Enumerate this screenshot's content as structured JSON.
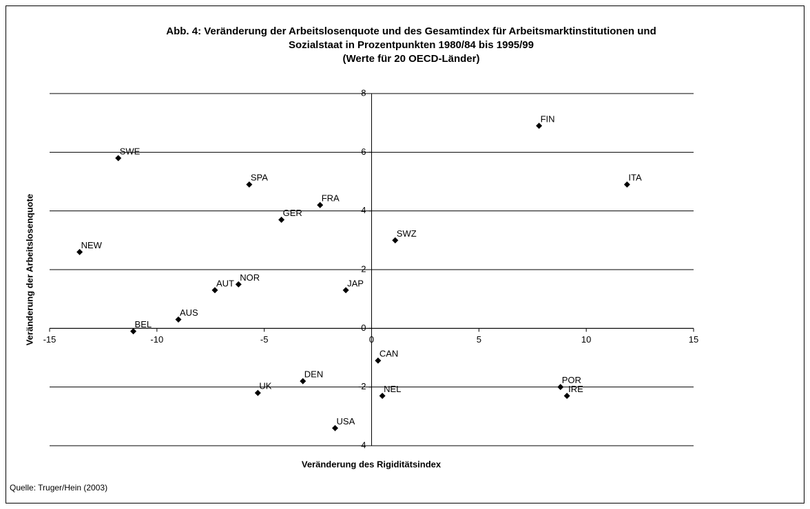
{
  "chart_data": {
    "type": "scatter",
    "title": [
      "Abb. 4: Veränderung der Arbeitslosenquote und des Gesamtindex für Arbeitsmarktinstitutionen und",
      "Sozialstaat in Prozentpunkten 1980/84 bis 1995/99",
      "(Werte für 20 OECD-Länder)"
    ],
    "x_label": "Veränderung des Rigiditätsindex",
    "y_label": "Veränderung der Arbeitslosenquote",
    "source": "Quelle: Truger/Hein (2003)",
    "labels": [
      "FIN",
      "SWE",
      "ITA",
      "SPA",
      "FRA",
      "GER",
      "SWZ",
      "NEW",
      "NOR",
      "AUT",
      "JAP",
      "AUS",
      "BEL",
      "CAN",
      "DEN",
      "UK",
      "NEL",
      "POR",
      "IRE",
      "USA"
    ],
    "x": [
      7.8,
      -11.8,
      11.9,
      -5.7,
      -2.4,
      -4.2,
      1.1,
      -13.6,
      -6.2,
      -7.3,
      -1.2,
      -9.0,
      -11.1,
      0.3,
      -3.2,
      -5.3,
      0.5,
      8.8,
      9.1,
      -1.7
    ],
    "values": [
      6.9,
      5.8,
      4.9,
      4.9,
      4.2,
      3.7,
      3.0,
      2.6,
      1.5,
      1.3,
      1.3,
      0.3,
      -0.1,
      -1.1,
      -1.8,
      -2.2,
      -2.3,
      -2.0,
      -2.3,
      -3.4
    ],
    "color": "#000000",
    "xlim": [
      -15,
      15
    ],
    "xticks": [
      -15,
      -10,
      -5,
      0,
      5,
      10,
      15
    ],
    "ylim": [
      -4,
      8
    ],
    "yticks": [
      -4,
      -2,
      0,
      2,
      4,
      6,
      8
    ],
    "grid": true
  }
}
